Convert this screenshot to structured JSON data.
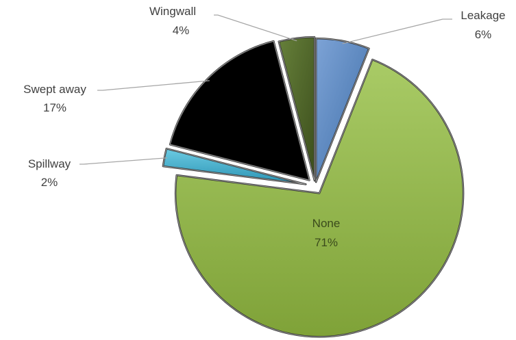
{
  "chart_data": {
    "type": "pie",
    "title": "",
    "categories": [
      "Leakage",
      "None",
      "Spillway",
      "Swept away",
      "Wingwall"
    ],
    "values": [
      6,
      71,
      2,
      17,
      4
    ],
    "value_labels": [
      "6%",
      "71%",
      "2%",
      "17%",
      "4%"
    ],
    "unit": "%",
    "exploded": true,
    "legend": "none",
    "colors": {
      "Leakage": "#4f81bd",
      "None": "#9bbb59",
      "Spillway": "#4bacc6",
      "Swept away": "#1f497d",
      "Wingwall": "#4f6228"
    },
    "start_category": "Leakage",
    "direction": "clockwise"
  }
}
